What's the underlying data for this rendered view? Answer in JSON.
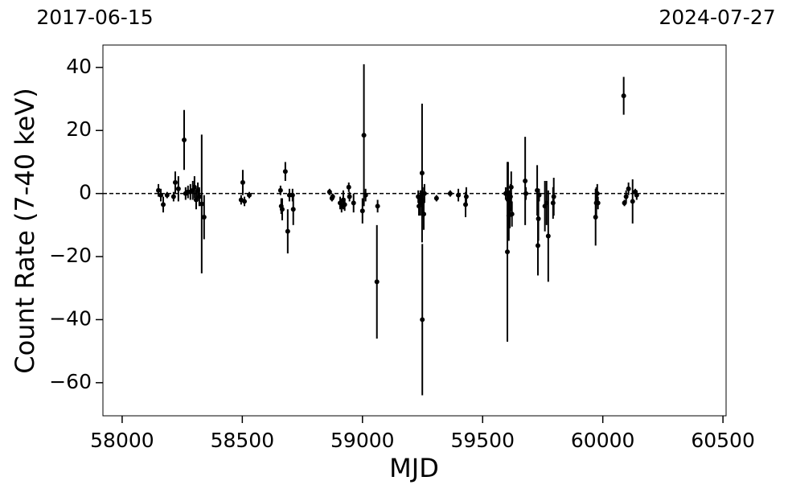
{
  "chart_data": {
    "type": "scatter",
    "top_labels": [
      "2017-06-15",
      "2024-07-27"
    ],
    "xlabel": "MJD",
    "ylabel": "Count Rate (7-40 keV)",
    "xlim": [
      57920,
      60513
    ],
    "ylim": [
      -70.5,
      47.1
    ],
    "xticks": [
      58000,
      58500,
      59000,
      59500,
      60000,
      60500
    ],
    "yticks": [
      {
        "value": -60,
        "label": "−60"
      },
      {
        "value": -40,
        "label": "−40"
      },
      {
        "value": -20,
        "label": "−20"
      },
      0,
      20,
      40
    ],
    "reference_line": 0,
    "color": "#000000",
    "x": [
      58151,
      58161,
      58171,
      58187,
      58214,
      58221,
      58234,
      58258,
      58264,
      58274,
      58284,
      58294,
      58301,
      58308,
      58315,
      58321,
      58331,
      58341,
      58495,
      58502,
      58509,
      58529,
      58659,
      58662,
      58666,
      58679,
      58689,
      58696,
      58709,
      58712,
      58863,
      58873,
      58876,
      58907,
      58913,
      58920,
      58926,
      58943,
      58946,
      58963,
      59000,
      59006,
      59013,
      59060,
      59063,
      59232,
      59235,
      59241,
      59245,
      59248,
      59249,
      59251,
      59255,
      59258,
      59308,
      59365,
      59399,
      59429,
      59432,
      59596,
      59603,
      59606,
      59609,
      59613,
      59616,
      59619,
      59622,
      59677,
      59680,
      59727,
      59730,
      59732,
      59735,
      59759,
      59766,
      59773,
      59793,
      59796,
      59970,
      59973,
      59977,
      59980,
      60087,
      60090,
      60097,
      60107,
      60124,
      60135,
      60141
    ],
    "values": [
      1,
      -0.5,
      -3.5,
      -0.5,
      -1,
      3.5,
      1.5,
      17,
      0,
      0.5,
      0.5,
      1,
      2,
      -2,
      1,
      -1,
      -3.3,
      -7.5,
      -2,
      3.5,
      -2.5,
      -0.5,
      1,
      -4,
      -5,
      7,
      -12,
      -0.5,
      -0.5,
      -5,
      0.5,
      -1.5,
      -1,
      -3,
      -4,
      -2,
      -3.5,
      2,
      -1,
      -3,
      -5.5,
      18.5,
      -0.5,
      -28,
      -4,
      -1,
      -4,
      -3,
      -1,
      6.5,
      -40,
      -2,
      -6.5,
      0,
      -1.5,
      0,
      -0.5,
      -3.5,
      -1,
      0,
      -18.5,
      -2,
      -7,
      -5,
      -1,
      2,
      -6.5,
      4,
      0,
      1,
      -16.5,
      -8,
      -0.5,
      -4,
      -3,
      -13.5,
      -3,
      -1,
      -7.5,
      -3,
      0,
      -3,
      31,
      -3,
      -1,
      1.5,
      -2.5,
      0.5,
      -0.5
    ],
    "errors": [
      2,
      2,
      2.5,
      1,
      1.5,
      3.5,
      4,
      9.5,
      2,
      2,
      2.5,
      3,
      3.5,
      3,
      2.5,
      3,
      22,
      7,
      1.5,
      4,
      1.5,
      1,
      1.5,
      2.5,
      3.5,
      3,
      7,
      2,
      2,
      5,
      1,
      1,
      1,
      2,
      2,
      3,
      2,
      1.5,
      1.5,
      3,
      4,
      22.5,
      2,
      18,
      2,
      2,
      3,
      4,
      2,
      22,
      24,
      4,
      5,
      3,
      1,
      1,
      2,
      4,
      3,
      2,
      28.5,
      12,
      8,
      6,
      4,
      5,
      4,
      14,
      2,
      8,
      9.5,
      7,
      2,
      8,
      7,
      14.5,
      5,
      6,
      9,
      5,
      3,
      2,
      6,
      1,
      2,
      2,
      7,
      1,
      1.5
    ]
  }
}
